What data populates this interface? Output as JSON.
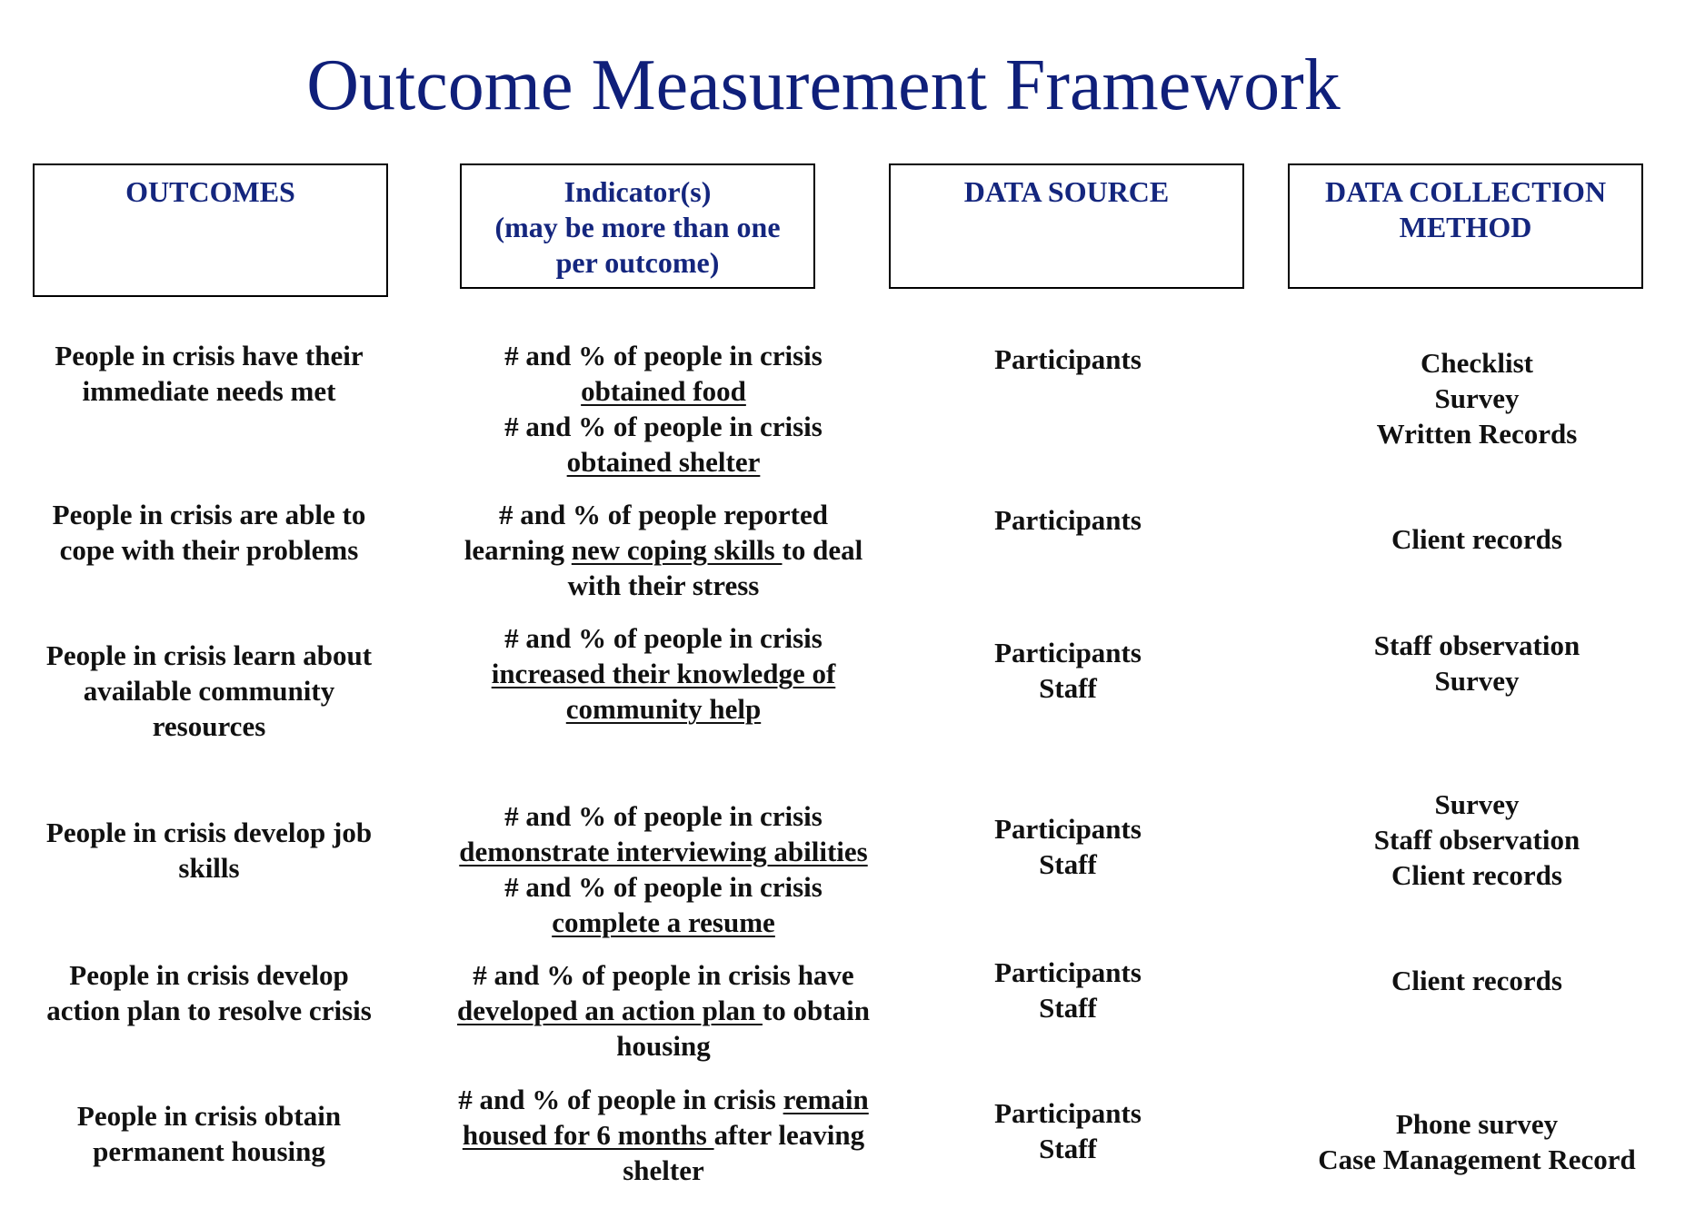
{
  "title": "Outcome Measurement Framework",
  "headers": {
    "outcomes": [
      "OUTCOMES"
    ],
    "indicators": [
      "Indicator(s)",
      "(may be more than one",
      "per outcome)"
    ],
    "data_source": [
      "DATA SOURCE"
    ],
    "collection_method": [
      "DATA COLLECTION",
      "METHOD"
    ]
  },
  "rows": [
    {
      "outcome": [
        "People in crisis have their",
        "immediate needs met"
      ],
      "indicator": [
        {
          "a": "# and % of people in crisis"
        },
        {
          "u": "obtained food"
        },
        {
          "a": "# and % of people in crisis"
        },
        {
          "u": "obtained shelter"
        }
      ],
      "source": [
        "Participants"
      ],
      "method": [
        "Checklist",
        "Survey",
        "Written Records"
      ]
    },
    {
      "outcome": [
        "People in crisis are able to",
        "cope with their problems"
      ],
      "indicator": [
        {
          "a": "# and % of people reported"
        },
        {
          "a": "learning ",
          "u": "new coping skills ",
          "b": "to deal"
        },
        {
          "a": "with their stress"
        }
      ],
      "source": [
        "Participants"
      ],
      "method": [
        "Client records"
      ]
    },
    {
      "outcome": [
        "People in crisis learn about",
        "available community",
        "resources"
      ],
      "indicator": [
        {
          "a": "# and % of people in crisis"
        },
        {
          "u": "increased their knowledge of"
        },
        {
          "u": "community help"
        }
      ],
      "source": [
        "Participants",
        "Staff"
      ],
      "method": [
        "Staff observation",
        "Survey"
      ]
    },
    {
      "outcome": [
        "People in crisis develop job",
        "skills"
      ],
      "indicator": [
        {
          "a": "# and % of people in crisis"
        },
        {
          "u": "demonstrate interviewing abilities"
        },
        {
          "a": "# and % of people in crisis"
        },
        {
          "u": "complete a resume"
        }
      ],
      "source": [
        "Participants",
        "Staff"
      ],
      "method": [
        "Survey",
        "Staff observation",
        "Client records"
      ]
    },
    {
      "outcome": [
        "People in crisis develop",
        "action plan to resolve crisis"
      ],
      "indicator": [
        {
          "a": "# and % of people in crisis have"
        },
        {
          "u": "developed an action plan ",
          "b": "to obtain"
        },
        {
          "a": "housing"
        }
      ],
      "source": [
        "Participants",
        "Staff"
      ],
      "method": [
        "Client records"
      ]
    },
    {
      "outcome": [
        "People in crisis obtain",
        "permanent housing"
      ],
      "indicator": [
        {
          "a": "# and % of people in crisis ",
          "u": "remain"
        },
        {
          "u": "housed for 6 months ",
          "b": "after leaving"
        },
        {
          "a": "shelter"
        }
      ],
      "source": [
        "Participants",
        "Staff"
      ],
      "method": [
        "Phone survey",
        "Case Management Record"
      ]
    }
  ]
}
